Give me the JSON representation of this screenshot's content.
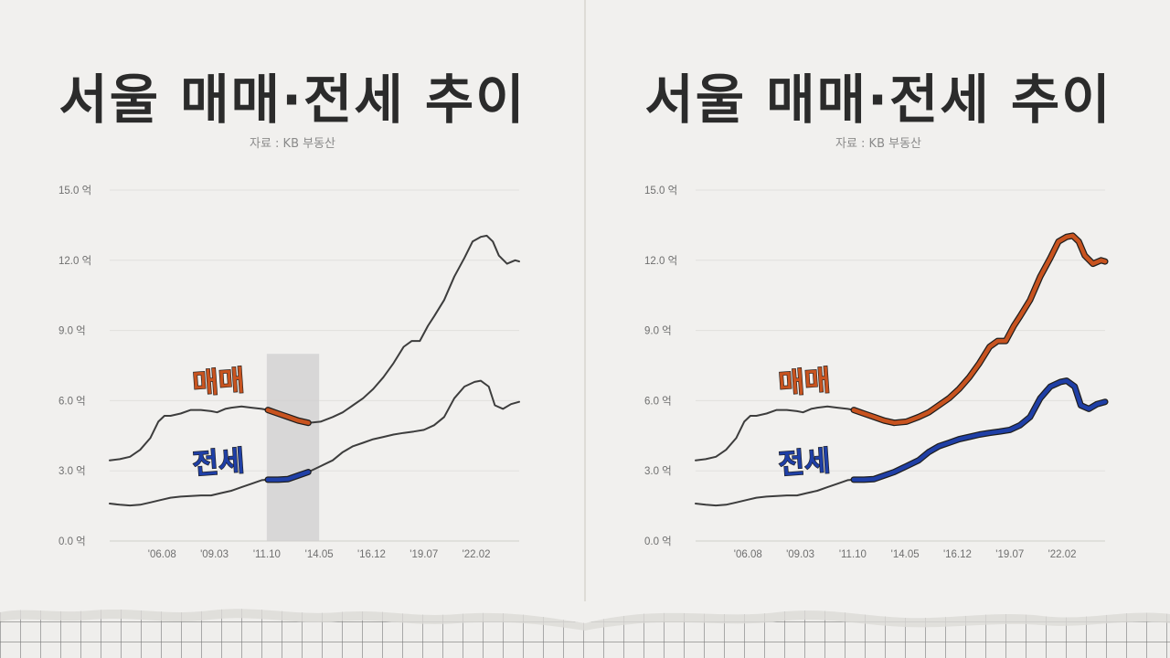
{
  "panels": [
    {
      "title": "서울 매매·전세 추이",
      "source": "자료 : KB 부동산",
      "labels": {
        "sale": "매매",
        "jeonse": "전세"
      }
    },
    {
      "title": "서울 매매·전세 추이",
      "source": "자료 : KB 부동산",
      "labels": {
        "sale": "매매",
        "jeonse": "전세"
      }
    }
  ],
  "colors": {
    "line": "#3d3d3d",
    "sale": "#c8531f",
    "jeonse": "#1f3fa6",
    "grid": "#e1e0dd",
    "highlight": "#cfcfcf"
  },
  "chart_data": [
    {
      "type": "line",
      "y_ticks": [
        "15.0 억",
        "12.0 억",
        "9.0 억",
        "6.0 억",
        "3.0 억",
        "0.0 억"
      ],
      "ylim": [
        0,
        15
      ],
      "x_ticks": [
        "'06.08",
        "'09.03",
        "'11.10",
        "'14.05",
        "'16.12",
        "'19.07",
        "'22.02"
      ],
      "xlim": [
        2004.0,
        2024.2
      ],
      "highlight_range": [
        "2011.10",
        "2014.05"
      ],
      "highlight_ymax": 8.0,
      "series": [
        {
          "name": "매매",
          "x": [
            2004.0,
            2004.5,
            2005.0,
            2005.5,
            2006.0,
            2006.4,
            2006.7,
            2007.0,
            2007.5,
            2008.0,
            2008.5,
            2009.0,
            2009.3,
            2009.7,
            2010.0,
            2010.5,
            2011.0,
            2011.5,
            2011.8,
            2012.3,
            2012.8,
            2013.3,
            2013.8,
            2014.4,
            2015.0,
            2015.5,
            2016.0,
            2016.5,
            2017.0,
            2017.5,
            2018.0,
            2018.5,
            2018.9,
            2019.3,
            2019.7,
            2020.0,
            2020.5,
            2021.0,
            2021.5,
            2021.9,
            2022.3,
            2022.6,
            2022.9,
            2023.2,
            2023.6,
            2024.0,
            2024.2
          ],
          "y": [
            3.45,
            3.5,
            3.6,
            3.9,
            4.4,
            5.1,
            5.35,
            5.35,
            5.45,
            5.6,
            5.6,
            5.55,
            5.5,
            5.65,
            5.7,
            5.75,
            5.7,
            5.65,
            5.6,
            5.45,
            5.3,
            5.15,
            5.05,
            5.1,
            5.3,
            5.5,
            5.8,
            6.1,
            6.5,
            7.0,
            7.6,
            8.3,
            8.55,
            8.55,
            9.2,
            9.6,
            10.3,
            11.3,
            12.1,
            12.8,
            13.0,
            13.05,
            12.8,
            12.2,
            11.85,
            12.0,
            11.95
          ]
        },
        {
          "name": "전세",
          "x": [
            2004.0,
            2004.5,
            2005.0,
            2005.5,
            2006.0,
            2006.5,
            2007.0,
            2007.5,
            2008.0,
            2008.5,
            2009.0,
            2009.5,
            2010.0,
            2010.5,
            2011.0,
            2011.5,
            2011.8,
            2012.3,
            2012.8,
            2013.3,
            2013.8,
            2014.4,
            2015.0,
            2015.5,
            2016.0,
            2016.5,
            2017.0,
            2017.5,
            2018.0,
            2018.5,
            2019.0,
            2019.5,
            2020.0,
            2020.5,
            2021.0,
            2021.5,
            2022.0,
            2022.3,
            2022.7,
            2023.0,
            2023.4,
            2023.8,
            2024.2
          ],
          "y": [
            1.6,
            1.55,
            1.52,
            1.55,
            1.65,
            1.75,
            1.85,
            1.9,
            1.92,
            1.95,
            1.95,
            2.05,
            2.15,
            2.3,
            2.45,
            2.6,
            2.62,
            2.62,
            2.65,
            2.8,
            2.95,
            3.2,
            3.45,
            3.8,
            4.05,
            4.2,
            4.35,
            4.45,
            4.55,
            4.62,
            4.68,
            4.75,
            4.95,
            5.3,
            6.1,
            6.6,
            6.8,
            6.85,
            6.6,
            5.8,
            5.65,
            5.85,
            5.95
          ]
        }
      ]
    },
    {
      "type": "line",
      "y_ticks": [
        "15.0 억",
        "12.0 억",
        "9.0 억",
        "6.0 억",
        "3.0 억",
        "0.0 억"
      ],
      "ylim": [
        0,
        15
      ],
      "x_ticks": [
        "'06.08",
        "'09.03",
        "'11.10",
        "'14.05",
        "'16.12",
        "'19.07",
        "'22.02"
      ],
      "xlim": [
        2004.0,
        2024.2
      ],
      "highlight_range": [
        "2011.10",
        "2024.2"
      ],
      "series": [
        {
          "name": "매매",
          "x": [
            2004.0,
            2004.5,
            2005.0,
            2005.5,
            2006.0,
            2006.4,
            2006.7,
            2007.0,
            2007.5,
            2008.0,
            2008.5,
            2009.0,
            2009.3,
            2009.7,
            2010.0,
            2010.5,
            2011.0,
            2011.5,
            2011.8,
            2012.3,
            2012.8,
            2013.3,
            2013.8,
            2014.4,
            2015.0,
            2015.5,
            2016.0,
            2016.5,
            2017.0,
            2017.5,
            2018.0,
            2018.5,
            2018.9,
            2019.3,
            2019.7,
            2020.0,
            2020.5,
            2021.0,
            2021.5,
            2021.9,
            2022.3,
            2022.6,
            2022.9,
            2023.2,
            2023.6,
            2024.0,
            2024.2
          ],
          "y": [
            3.45,
            3.5,
            3.6,
            3.9,
            4.4,
            5.1,
            5.35,
            5.35,
            5.45,
            5.6,
            5.6,
            5.55,
            5.5,
            5.65,
            5.7,
            5.75,
            5.7,
            5.65,
            5.6,
            5.45,
            5.3,
            5.15,
            5.05,
            5.1,
            5.3,
            5.5,
            5.8,
            6.1,
            6.5,
            7.0,
            7.6,
            8.3,
            8.55,
            8.55,
            9.2,
            9.6,
            10.3,
            11.3,
            12.1,
            12.8,
            13.0,
            13.05,
            12.8,
            12.2,
            11.85,
            12.0,
            11.95
          ]
        },
        {
          "name": "전세",
          "x": [
            2004.0,
            2004.5,
            2005.0,
            2005.5,
            2006.0,
            2006.5,
            2007.0,
            2007.5,
            2008.0,
            2008.5,
            2009.0,
            2009.5,
            2010.0,
            2010.5,
            2011.0,
            2011.5,
            2011.8,
            2012.3,
            2012.8,
            2013.3,
            2013.8,
            2014.4,
            2015.0,
            2015.5,
            2016.0,
            2016.5,
            2017.0,
            2017.5,
            2018.0,
            2018.5,
            2019.0,
            2019.5,
            2020.0,
            2020.5,
            2021.0,
            2021.5,
            2022.0,
            2022.3,
            2022.7,
            2023.0,
            2023.4,
            2023.8,
            2024.2
          ],
          "y": [
            1.6,
            1.55,
            1.52,
            1.55,
            1.65,
            1.75,
            1.85,
            1.9,
            1.92,
            1.95,
            1.95,
            2.05,
            2.15,
            2.3,
            2.45,
            2.6,
            2.62,
            2.62,
            2.65,
            2.8,
            2.95,
            3.2,
            3.45,
            3.8,
            4.05,
            4.2,
            4.35,
            4.45,
            4.55,
            4.62,
            4.68,
            4.75,
            4.95,
            5.3,
            6.1,
            6.6,
            6.8,
            6.85,
            6.6,
            5.8,
            5.65,
            5.85,
            5.95
          ]
        }
      ]
    }
  ]
}
